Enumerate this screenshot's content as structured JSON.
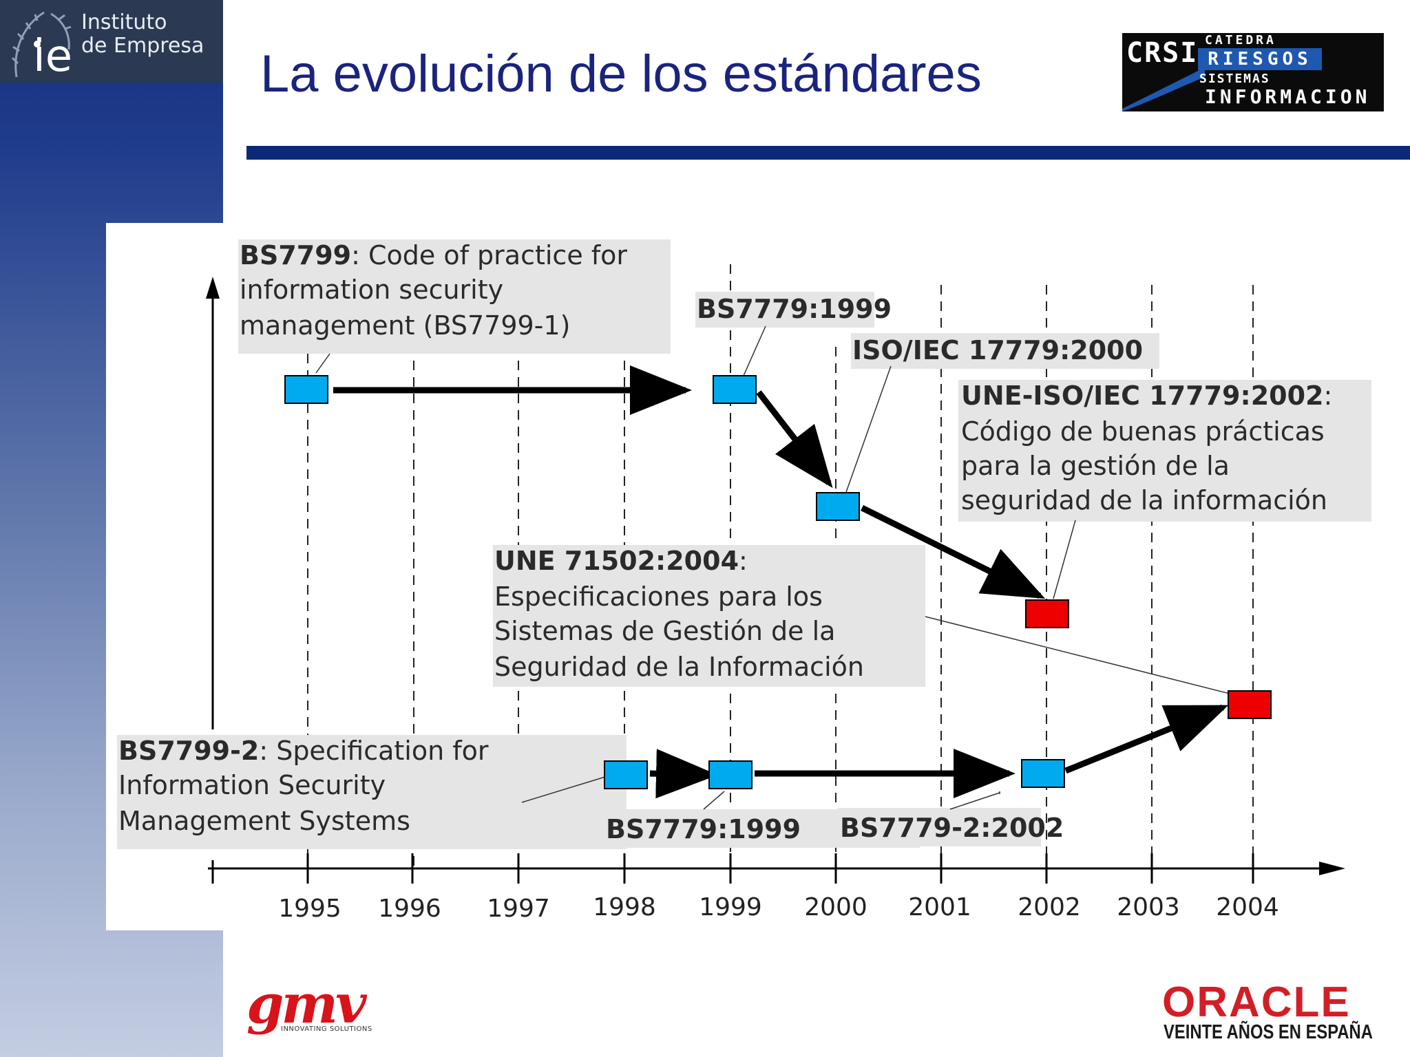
{
  "header": {
    "institution_line1": "Instituto",
    "institution_line2": "de Empresa",
    "institution_mark": "ie",
    "slide_title": "La evolución de los estándares",
    "partner_logo": {
      "abbr": "CRSI",
      "line1": "CATEDRA",
      "line2": "RIESGOS",
      "line3": "SISTEMAS",
      "line4": "INFORMACION"
    }
  },
  "diagram": {
    "years": [
      "1995",
      "1996",
      "1997",
      "1998",
      "1999",
      "2000",
      "2001",
      "2002",
      "2003",
      "2004"
    ],
    "labels": {
      "bs7799_1": {
        "bold": "BS7799",
        "rest_line1": ": Code of practice for",
        "line2": "information security",
        "line3": "management (BS7799-1)"
      },
      "bs7779_1999_top": {
        "bold": "BS7779:1999"
      },
      "iso_17779_2000": {
        "bold": "ISO/IEC 17779:2000"
      },
      "une_iso_17779_2002": {
        "bold": "UNE-ISO/IEC 17779:2002",
        "rest_line1": ":",
        "line2": "Código de buenas prácticas",
        "line3": "para la gestión de la",
        "line4": "seguridad de la información"
      },
      "une_71502_2004": {
        "bold": "UNE 71502:2004",
        "rest_line1": ":",
        "line2": "Especificaciones para los",
        "line3": "Sistemas de Gestión de la",
        "line4": "Seguridad de la Información"
      },
      "bs7799_2": {
        "bold": "BS7799-2",
        "rest_line1": ": Specification for",
        "line2": "Information Security",
        "line3": "Management Systems"
      },
      "bs7779_1999_bottom": {
        "bold": "BS7779:1999"
      },
      "bs7779_2_2002": {
        "bold": "BS7779-2:2002"
      }
    },
    "colors": {
      "standard_box": "#00aaee",
      "spanish_standard_box": "#ee0000",
      "label_bg": "#e5e5e5"
    }
  },
  "footer": {
    "left_logo": {
      "name": "gmv",
      "tagline": "INNOVATING SOLUTIONS"
    },
    "right_logo": {
      "name": "ORACLE",
      "tagline": "VEINTE AÑOS EN ESPAÑA"
    }
  }
}
